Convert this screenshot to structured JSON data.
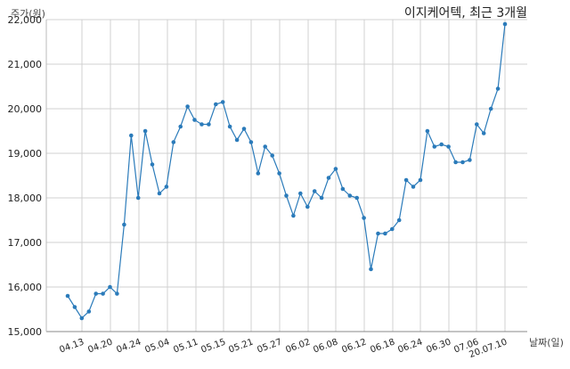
{
  "chart_data": {
    "type": "line",
    "title": "이지케어텍, 최근 3개월",
    "xlabel": "날짜(일)",
    "ylabel": "주가(원)",
    "ylim": [
      15000,
      22000
    ],
    "yticks": [
      "15,000",
      "16,000",
      "17,000",
      "18,000",
      "19,000",
      "20,000",
      "21,000",
      "22,000"
    ],
    "xticks": [
      "04.13",
      "04.20",
      "04.24",
      "05.04",
      "05.11",
      "05.15",
      "05.21",
      "05.27",
      "06.02",
      "06.08",
      "06.12",
      "06.18",
      "06.24",
      "06.30",
      "07.06",
      "20.07.10"
    ],
    "grid": true,
    "color": "#2b7bba",
    "series": [
      {
        "values": [
          15800,
          15550,
          15300,
          15450,
          15850,
          15850,
          16000,
          15850,
          17400,
          19400,
          18000,
          19500,
          18750,
          18100,
          18250,
          19250,
          19600,
          20050,
          19750,
          19650,
          19650,
          20100,
          20150,
          19600,
          19300,
          19550,
          19250,
          18550,
          19150,
          18950,
          18550,
          18050,
          17600,
          18100,
          17800,
          18150,
          18000,
          18450,
          18650,
          18200,
          18050,
          18000,
          17550,
          16400,
          17200,
          17200,
          17300,
          17500,
          18400,
          18250,
          18400,
          19500,
          19150,
          19200,
          19150,
          18800,
          18800,
          18850,
          19650,
          19450,
          20000,
          20450,
          21900
        ]
      }
    ]
  }
}
